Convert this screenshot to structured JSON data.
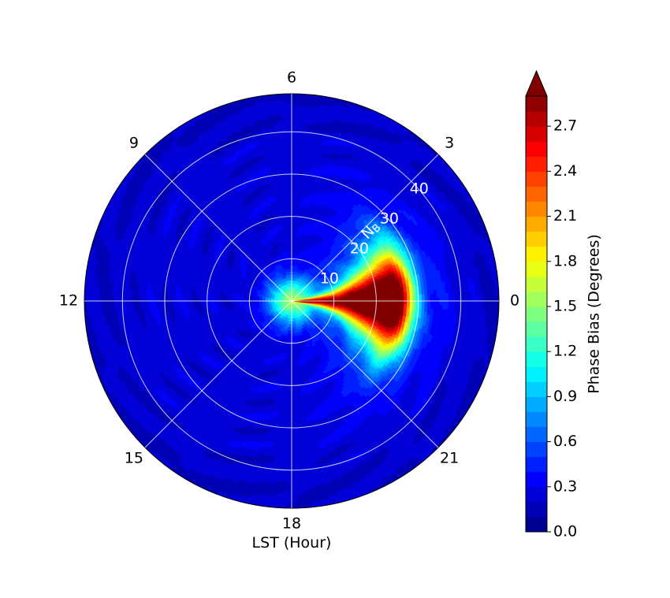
{
  "chart_data": {
    "type": "heatmap",
    "projection": "polar",
    "xlabel": "LST (Hour)",
    "angular_axis": {
      "ticks": [
        "0",
        "3",
        "6",
        "9",
        "12",
        "15",
        "18",
        "21"
      ],
      "hours": [
        0,
        3,
        6,
        9,
        12,
        15,
        18,
        21
      ],
      "direction": "counter-clockwise",
      "zero_location": "east"
    },
    "radial_axis": {
      "label_main": "N",
      "label_sub": "B",
      "ticks": [
        "10",
        "20",
        "30",
        "40"
      ],
      "values": [
        10,
        20,
        30,
        40
      ],
      "rmax": 49,
      "label_angle_deg": 45
    },
    "colorbar": {
      "label": "Phase Bias (Degrees)",
      "ticks": [
        "0.0",
        "0.3",
        "0.6",
        "0.9",
        "1.2",
        "1.5",
        "1.8",
        "2.1",
        "2.4",
        "2.7"
      ],
      "tick_values": [
        0.0,
        0.3,
        0.6,
        0.9,
        1.2,
        1.5,
        1.8,
        2.1,
        2.4,
        2.7
      ],
      "vmin": 0.0,
      "vmax": 2.9,
      "extend": "max",
      "colormap": "jet",
      "n_levels": 29
    },
    "grid": true,
    "field": {
      "background": 0.25,
      "hotspot_hour": 0,
      "hotspot_rmin": 0,
      "hotspot_rmax": 28,
      "peak_value": 3.0,
      "peak_r": 24
    }
  }
}
